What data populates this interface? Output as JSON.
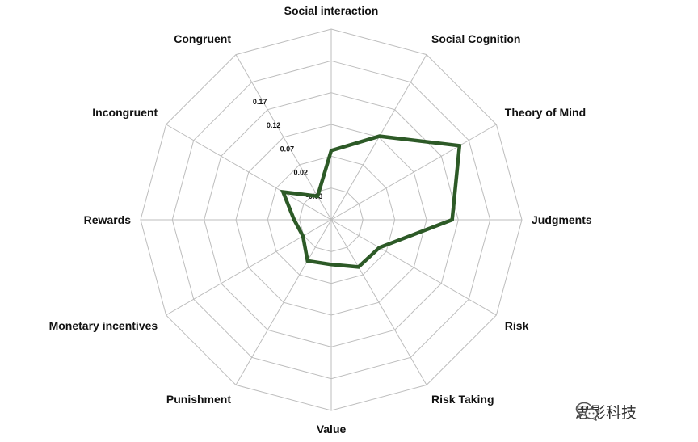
{
  "chart_data": {
    "type": "radar",
    "axes": [
      "Social interaction",
      "Social Cognition",
      "Theory of Mind",
      "Judgments",
      "Risk",
      "Risk Taking",
      "Value",
      "Punishment",
      "Monetary incentives",
      "Rewards",
      "Incongruent",
      "Congruent"
    ],
    "ticks": [
      -0.03,
      0.02,
      0.07,
      0.12,
      0.17
    ],
    "tick_labels": [
      "-0.03",
      "0.02",
      "0.07",
      "0.12",
      "0.17"
    ],
    "range": [
      -0.08,
      0.27
    ],
    "series": [
      {
        "values": [
          0.047,
          0.097,
          0.192,
          0.142,
          0.022,
          0.02,
          0.002,
          0.007,
          -0.02,
          -0.012,
          0.022,
          -0.03
        ],
        "color": "#2d5a27"
      }
    ],
    "grid": true
  },
  "watermark": {
    "icon": "wechat-icon",
    "text": "思影科技"
  }
}
